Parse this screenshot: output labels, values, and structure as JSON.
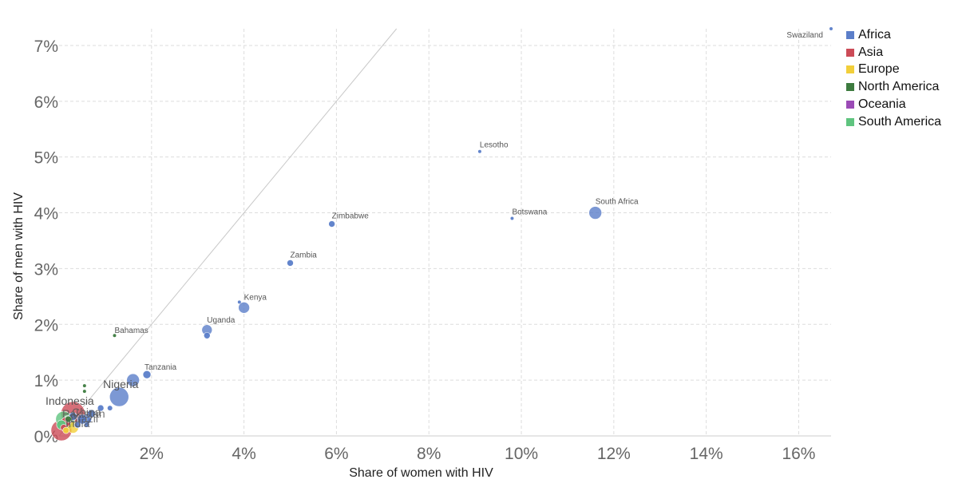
{
  "chart_data": {
    "type": "scatter",
    "title": "",
    "xlabel": "Share of women with HIV",
    "ylabel": "Share of men with HIV",
    "xlim": [
      0,
      16.7
    ],
    "ylim": [
      0,
      7.3
    ],
    "x_ticks": [
      2,
      4,
      6,
      8,
      10,
      12,
      14,
      16
    ],
    "x_tick_labels": [
      "2%",
      "4%",
      "6%",
      "8%",
      "10%",
      "12%",
      "14%",
      "16%"
    ],
    "y_ticks": [
      0,
      1,
      2,
      3,
      4,
      5,
      6,
      7
    ],
    "y_tick_labels": [
      "0%",
      "1%",
      "2%",
      "3%",
      "4%",
      "5%",
      "6%",
      "7%"
    ],
    "grid": true,
    "reference_line": "y = x",
    "legend_position": "top-right",
    "series": [
      {
        "name": "Africa",
        "color": "#5b7ec9",
        "points": [
          {
            "x": 16.7,
            "y": 7.3,
            "r": 2,
            "label": "Swaziland"
          },
          {
            "x": 9.1,
            "y": 5.1,
            "r": 2,
            "label": "Lesotho"
          },
          {
            "x": 9.8,
            "y": 3.9,
            "r": 2,
            "label": "Botswana"
          },
          {
            "x": 11.6,
            "y": 4.0,
            "r": 8,
            "label": "South Africa"
          },
          {
            "x": 5.9,
            "y": 3.8,
            "r": 4,
            "label": "Zimbabwe"
          },
          {
            "x": 5.0,
            "y": 3.1,
            "r": 4,
            "label": "Zambia"
          },
          {
            "x": 4.0,
            "y": 2.3,
            "r": 7,
            "label": "Kenya"
          },
          {
            "x": 3.9,
            "y": 2.4,
            "r": 2,
            "label": ""
          },
          {
            "x": 3.2,
            "y": 1.9,
            "r": 6.5,
            "label": "Uganda"
          },
          {
            "x": 3.2,
            "y": 1.8,
            "r": 4,
            "label": ""
          },
          {
            "x": 1.9,
            "y": 1.1,
            "r": 5,
            "label": "Tanzania"
          },
          {
            "x": 1.6,
            "y": 1.0,
            "r": 8,
            "label": ""
          },
          {
            "x": 1.3,
            "y": 0.7,
            "r": 12,
            "label": "Nigeria"
          },
          {
            "x": 1.1,
            "y": 0.5,
            "r": 3,
            "label": ""
          },
          {
            "x": 0.9,
            "y": 0.5,
            "r": 4,
            "label": ""
          },
          {
            "x": 0.7,
            "y": 0.4,
            "r": 5,
            "label": ""
          },
          {
            "x": 0.6,
            "y": 0.3,
            "r": 6,
            "label": ""
          },
          {
            "x": 0.6,
            "y": 0.2,
            "r": 3,
            "label": ""
          },
          {
            "x": 0.5,
            "y": 0.3,
            "r": 6,
            "label": ""
          },
          {
            "x": 0.4,
            "y": 0.2,
            "r": 4,
            "label": ""
          },
          {
            "x": 0.3,
            "y": 0.35,
            "r": 5,
            "label": ""
          }
        ]
      },
      {
        "name": "Asia",
        "color": "#cc4b57",
        "points": [
          {
            "x": 0.3,
            "y": 0.4,
            "r": 15,
            "label": "Indonesia"
          },
          {
            "x": 0.05,
            "y": 0.1,
            "r": 13,
            "label": ""
          },
          {
            "x": 0.15,
            "y": 0.25,
            "r": 6,
            "label": ""
          },
          {
            "x": 0.1,
            "y": 0.15,
            "r": 4,
            "label": ""
          }
        ]
      },
      {
        "name": "Europe",
        "color": "#f2cf3a",
        "points": [
          {
            "x": 0.3,
            "y": 0.15,
            "r": 7,
            "label": ""
          },
          {
            "x": 0.15,
            "y": 0.1,
            "r": 4,
            "label": ""
          }
        ]
      },
      {
        "name": "North America",
        "color": "#3d7b3f",
        "points": [
          {
            "x": 1.2,
            "y": 1.8,
            "r": 2,
            "label": "Bahamas"
          },
          {
            "x": 0.55,
            "y": 0.9,
            "r": 2,
            "label": ""
          },
          {
            "x": 0.55,
            "y": 0.8,
            "r": 2,
            "label": ""
          },
          {
            "x": 0.2,
            "y": 0.3,
            "r": 4,
            "label": ""
          }
        ]
      },
      {
        "name": "Oceania",
        "color": "#9b4bb6",
        "points": []
      },
      {
        "name": "South America",
        "color": "#5fc47f",
        "points": [
          {
            "x": 0.1,
            "y": 0.3,
            "r": 10,
            "label": ""
          },
          {
            "x": 0.2,
            "y": 0.25,
            "r": 8,
            "label": ""
          },
          {
            "x": 0.05,
            "y": 0.2,
            "r": 6,
            "label": ""
          }
        ]
      }
    ],
    "small_labels": [
      "Pakistan",
      "Brazil",
      "China",
      "India"
    ]
  },
  "legend": {
    "items": [
      {
        "label": "Africa",
        "color": "#5b7ec9"
      },
      {
        "label": "Asia",
        "color": "#cc4b57"
      },
      {
        "label": "Europe",
        "color": "#f2cf3a"
      },
      {
        "label": "North America",
        "color": "#3d7b3f"
      },
      {
        "label": "Oceania",
        "color": "#9b4bb6"
      },
      {
        "label": "South America",
        "color": "#5fc47f"
      }
    ]
  }
}
